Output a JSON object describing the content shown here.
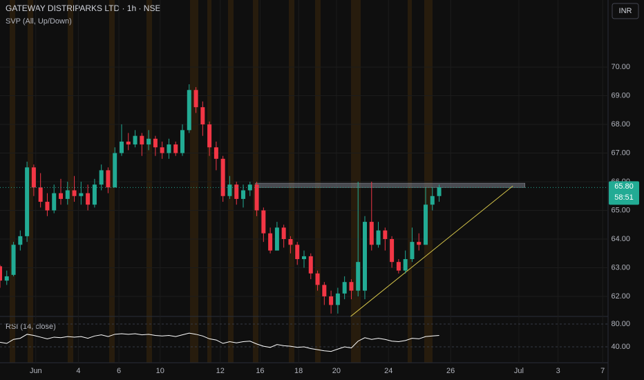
{
  "chart_data": {
    "type": "candlestick",
    "title": "GATEWAY DISTRIPARKS LTD · 1h · NSE",
    "indicator": "SVP (All, Up/Down)",
    "currency": "INR",
    "up_color": "#22ab94",
    "down_color": "#f23645",
    "grid": true,
    "x": [
      0,
      1,
      2,
      3,
      4,
      5,
      6,
      7,
      8,
      9,
      10,
      11,
      12,
      13,
      14,
      15,
      16,
      17,
      18,
      19,
      20,
      21,
      22,
      23,
      24,
      25,
      26,
      27,
      28,
      29,
      30,
      31,
      32,
      33,
      34,
      35,
      36,
      37,
      38,
      39,
      40,
      41,
      42,
      43,
      44,
      45,
      46,
      47,
      48,
      49,
      50,
      51,
      52,
      53,
      54,
      55,
      56,
      57,
      58,
      59,
      60,
      61,
      62,
      63,
      64,
      65
    ],
    "open": [
      63.05,
      62.55,
      62.75,
      63.8,
      64.1,
      66.5,
      65.8,
      65.3,
      65.0,
      65.6,
      65.4,
      65.7,
      65.5,
      65.6,
      65.2,
      65.9,
      66.4,
      65.8,
      67.0,
      67.4,
      67.3,
      67.6,
      67.3,
      67.5,
      67.2,
      67.0,
      67.3,
      67.0,
      67.8,
      69.2,
      68.6,
      68.0,
      67.2,
      66.8,
      65.5,
      65.9,
      65.4,
      65.7,
      65.9,
      65.0,
      64.2,
      63.6,
      64.4,
      64.0,
      63.8,
      63.3,
      63.4,
      62.8,
      62.4,
      62.0,
      61.7,
      62.1,
      62.5,
      62.2,
      62.2,
      64.6,
      63.8,
      64.3,
      64.0,
      63.2,
      62.9,
      63.3,
      63.9,
      63.8,
      65.2,
      65.5
    ],
    "high": [
      63.1,
      62.9,
      63.9,
      64.3,
      66.7,
      66.6,
      66.3,
      65.6,
      65.9,
      66.1,
      66.0,
      66.2,
      66.0,
      65.9,
      66.1,
      66.6,
      66.5,
      67.2,
      68.0,
      67.7,
      67.8,
      67.7,
      67.8,
      67.6,
      67.4,
      67.5,
      67.4,
      68.0,
      69.4,
      69.3,
      68.8,
      68.1,
      67.4,
      66.9,
      66.2,
      66.0,
      65.9,
      66.0,
      66.0,
      65.1,
      64.4,
      64.6,
      64.5,
      64.1,
      63.9,
      63.6,
      63.5,
      62.9,
      62.5,
      62.2,
      62.3,
      62.7,
      62.6,
      66.0,
      64.8,
      66.0,
      64.6,
      64.4,
      64.1,
      63.3,
      63.6,
      64.4,
      64.2,
      65.8,
      65.8,
      65.9
    ],
    "low": [
      62.3,
      62.4,
      62.7,
      63.6,
      63.9,
      65.5,
      65.1,
      64.8,
      64.9,
      65.2,
      65.2,
      65.3,
      65.2,
      65.0,
      65.1,
      65.7,
      65.6,
      65.8,
      66.9,
      67.1,
      67.2,
      66.9,
      67.1,
      66.9,
      66.8,
      66.8,
      66.9,
      66.9,
      67.7,
      68.4,
      67.6,
      66.9,
      66.4,
      65.3,
      65.4,
      65.2,
      65.1,
      65.5,
      64.8,
      63.9,
      63.5,
      63.6,
      63.7,
      63.5,
      63.1,
      63.0,
      62.6,
      62.2,
      61.7,
      61.4,
      61.4,
      61.9,
      61.9,
      62.0,
      61.9,
      63.6,
      63.7,
      63.6,
      63.0,
      62.8,
      62.8,
      63.2,
      63.6,
      63.8,
      65.0,
      65.3
    ],
    "close": [
      62.55,
      62.7,
      63.8,
      64.1,
      66.5,
      65.8,
      65.3,
      65.0,
      65.6,
      65.4,
      65.7,
      65.5,
      65.6,
      65.2,
      65.9,
      66.4,
      65.8,
      67.0,
      67.4,
      67.3,
      67.6,
      67.3,
      67.5,
      67.2,
      67.0,
      67.3,
      67.0,
      67.8,
      69.2,
      68.6,
      68.0,
      67.2,
      66.8,
      65.5,
      65.9,
      65.4,
      65.7,
      65.9,
      65.0,
      64.2,
      63.6,
      64.4,
      64.0,
      63.8,
      63.3,
      63.4,
      62.8,
      62.4,
      62.0,
      61.7,
      62.1,
      62.5,
      62.2,
      63.2,
      64.6,
      63.8,
      64.3,
      64.0,
      63.2,
      62.9,
      63.3,
      63.9,
      63.8,
      65.2,
      65.5,
      65.8
    ],
    "xlim": [
      0,
      90
    ],
    "xticks": [
      {
        "value": 5.3,
        "label": "Jun"
      },
      {
        "value": 11.6,
        "label": "4"
      },
      {
        "value": 17.6,
        "label": "6"
      },
      {
        "value": 23.7,
        "label": "10"
      },
      {
        "value": 32.6,
        "label": "12"
      },
      {
        "value": 38.5,
        "label": "16"
      },
      {
        "value": 44.2,
        "label": "18"
      },
      {
        "value": 49.8,
        "label": "20"
      },
      {
        "value": 57.5,
        "label": "24"
      },
      {
        "value": 66.7,
        "label": "26"
      },
      {
        "value": 76.8,
        "label": "Jul"
      },
      {
        "value": 82.6,
        "label": "3"
      },
      {
        "value": 89.2,
        "label": "7"
      }
    ],
    "ylim": [
      61.3,
      72.34
    ],
    "yticks": [
      {
        "value": 62,
        "label": "62.00"
      },
      {
        "value": 63,
        "label": "63.00"
      },
      {
        "value": 64,
        "label": "64.00"
      },
      {
        "value": 65,
        "label": "65.00"
      },
      {
        "value": 66,
        "label": "66.00"
      },
      {
        "value": 67,
        "label": "67.00"
      },
      {
        "value": 68,
        "label": "68.00"
      },
      {
        "value": 69,
        "label": "69.00"
      },
      {
        "value": 70,
        "label": "70.00"
      }
    ],
    "last_price": {
      "value": 65.8,
      "label": "65.80"
    },
    "countdown": "58:51",
    "resistance": {
      "x": [
        37.8,
        77.7
      ],
      "y": [
        65.8,
        65.95
      ]
    },
    "trendline": {
      "x": [
        51.9,
        75.9
      ],
      "y": [
        61.3,
        65.85
      ]
    },
    "rsi": {
      "name": "RSI (14, close)",
      "color": "#ffffff",
      "values": [
        48,
        46,
        53,
        55,
        62,
        60,
        57,
        54,
        57,
        56,
        58,
        57,
        58,
        55,
        59,
        61,
        58,
        62,
        63,
        62,
        63,
        61,
        62,
        60,
        59,
        60,
        58,
        61,
        64,
        62,
        59,
        54,
        52,
        46,
        49,
        47,
        49,
        50,
        45,
        41,
        39,
        44,
        42,
        41,
        39,
        40,
        37,
        35,
        33,
        32,
        36,
        40,
        38,
        50,
        56,
        53,
        55,
        53,
        50,
        49,
        51,
        55,
        54,
        58,
        59,
        60
      ],
      "ylim": [
        12.1,
        93.3
      ],
      "yticks": [
        {
          "value": 80,
          "label": "80.00"
        },
        {
          "value": 40,
          "label": "40.00"
        }
      ]
    }
  }
}
